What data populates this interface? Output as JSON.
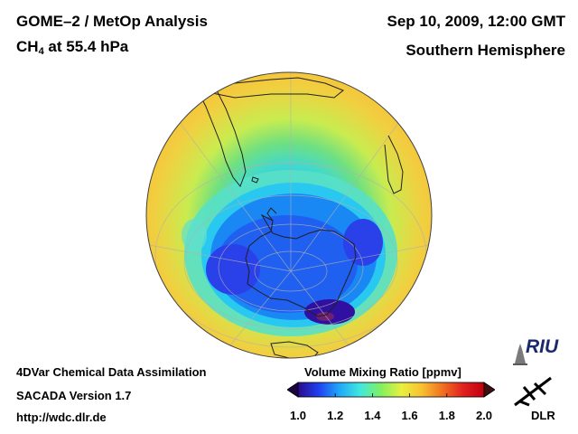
{
  "header": {
    "title_line1": "GOME–2 / MetOp Analysis",
    "title_species": "CH",
    "title_species_sub": "4",
    "title_level": "at 55.4 hPa",
    "date": "Sep 10, 2009, 12:00 GMT",
    "region": "Southern Hemisphere"
  },
  "footer": {
    "line1": "4DVar Chemical Data Assimilation",
    "line2": "SACADA Version 1.7",
    "line3": "http://wdc.dlr.de"
  },
  "colorbar": {
    "title": "Volume Mixing Ratio [ppmv]",
    "ticks": [
      "1.0",
      "1.2",
      "1.4",
      "1.6",
      "1.8",
      "2.0"
    ],
    "min": 1.0,
    "max": 2.0,
    "colors": [
      "#2a0a8c",
      "#2040f0",
      "#20a8f8",
      "#40e8e0",
      "#80f060",
      "#e8f040",
      "#f8c030",
      "#f07020",
      "#e02020",
      "#c00010"
    ]
  },
  "logos": {
    "riu": "RIU",
    "dlr": "DLR"
  }
}
